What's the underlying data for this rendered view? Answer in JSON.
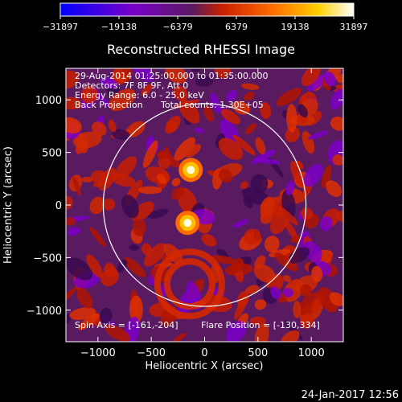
{
  "chart_data": {
    "type": "heatmap",
    "title": "Reconstructed RHESSI Image",
    "xlabel": "Heliocentric X (arcsec)",
    "ylabel": "Heliocentric Y (arcsec)",
    "xlim": [
      -1300,
      1300
    ],
    "ylim": [
      -1300,
      1300
    ],
    "x_ticks": [
      -1000,
      -500,
      0,
      500,
      1000
    ],
    "x_tick_labels": [
      "−1000",
      "−500",
      "0",
      "500",
      "1000"
    ],
    "y_ticks": [
      -1000,
      -500,
      0,
      500,
      1000
    ],
    "y_tick_labels": [
      "−1000",
      "−500",
      "0",
      "500",
      "1000"
    ],
    "colorbar": {
      "min": -31897,
      "max": 31897,
      "tick_values": [
        -31897,
        -19138,
        -6379,
        6379,
        19138,
        31897
      ],
      "tick_labels": [
        "−31897",
        "−19138",
        "−6379",
        "6379",
        "19138",
        "31897"
      ],
      "colors": [
        "#0000ff",
        "#7b00c8",
        "#5a1a60",
        "#c81e00",
        "#ff6a00",
        "#ffd000",
        "#ffffff"
      ]
    },
    "solar_limb_radius_arcsec": 950,
    "sources": [
      {
        "x": -130,
        "y": 334,
        "intensity": 1.0
      },
      {
        "x": -160,
        "y": -170,
        "intensity": 0.95
      }
    ],
    "annotations": {
      "line1": "29-Aug-2014 01:25:00.000 to 01:35:00.000",
      "line2": "Detectors: 7F 8F 9F, Att 0",
      "line3": "Energy Range: 6.0 - 25.0 keV",
      "line4_left": "Back Projection",
      "line4_right": "Total counts: 1.30E+05",
      "spin_axis": "Spin Axis = [-161,-204]",
      "flare_position": "Flare Position = [-130,334]"
    },
    "background_color": "#000000"
  },
  "footer": {
    "timestamp": "24-Jan-2017 12:56"
  }
}
